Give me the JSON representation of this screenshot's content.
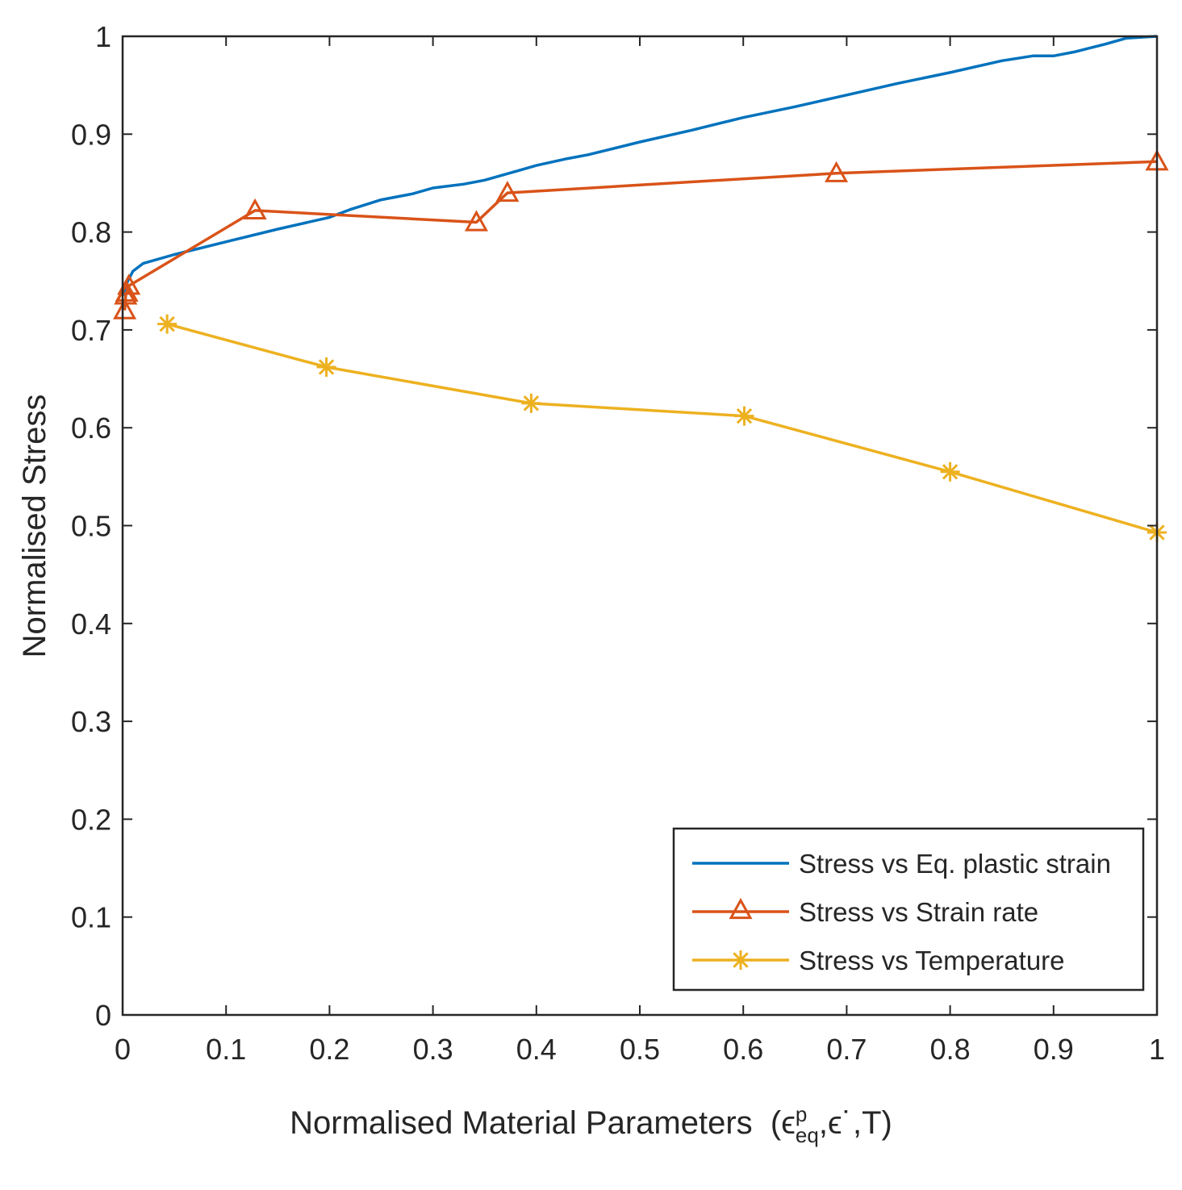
{
  "chart_data": {
    "type": "line",
    "title": "",
    "xlabel": "Normalised Material Parameters",
    "xlabel_symbols": {
      "open": "(",
      "eps": "ϵ",
      "eps_sup": "p",
      "eps_sub": "eq",
      "sep1": ", ",
      "eps_dot": "ϵ˙",
      "sep2": ", ",
      "T": "T",
      "close": ")"
    },
    "ylabel": "Normalised Stress",
    "xlim": [
      0,
      1
    ],
    "ylim": [
      0,
      1
    ],
    "xticks": [
      0,
      0.1,
      0.2,
      0.3,
      0.4,
      0.5,
      0.6,
      0.7,
      0.8,
      0.9,
      1
    ],
    "xtick_labels": [
      "0",
      "0.1",
      "0.2",
      "0.3",
      "0.4",
      "0.5",
      "0.6",
      "0.7",
      "0.8",
      "0.9",
      "1"
    ],
    "yticks": [
      0,
      0.1,
      0.2,
      0.3,
      0.4,
      0.5,
      0.6,
      0.7,
      0.8,
      0.9,
      1
    ],
    "ytick_labels": [
      "0",
      "0.1",
      "0.2",
      "0.3",
      "0.4",
      "0.5",
      "0.6",
      "0.7",
      "0.8",
      "0.9",
      "1"
    ],
    "grid": false,
    "legend_position": "bottom-right",
    "series": [
      {
        "name": "Stress vs Eq. plastic strain",
        "color": "#0072BD",
        "marker": "none",
        "x": [
          0,
          0.005,
          0.01,
          0.02,
          0.05,
          0.1,
          0.15,
          0.2,
          0.22,
          0.25,
          0.28,
          0.3,
          0.33,
          0.35,
          0.38,
          0.4,
          0.43,
          0.45,
          0.5,
          0.55,
          0.6,
          0.65,
          0.7,
          0.75,
          0.8,
          0.85,
          0.88,
          0.9,
          0.92,
          0.95,
          0.97,
          1.0
        ],
        "y": [
          0.735,
          0.75,
          0.76,
          0.768,
          0.777,
          0.79,
          0.803,
          0.815,
          0.823,
          0.833,
          0.839,
          0.845,
          0.849,
          0.853,
          0.862,
          0.868,
          0.875,
          0.879,
          0.892,
          0.904,
          0.917,
          0.928,
          0.94,
          0.952,
          0.963,
          0.975,
          0.98,
          0.98,
          0.984,
          0.992,
          0.998,
          1.0
        ]
      },
      {
        "name": "Stress vs Strain rate",
        "color": "#D95319",
        "marker": "triangle",
        "x": [
          0.002,
          0.003,
          0.004,
          0.006,
          0.128,
          0.342,
          0.372,
          0.69,
          1.0
        ],
        "y": [
          0.72,
          0.735,
          0.738,
          0.745,
          0.822,
          0.81,
          0.84,
          0.86,
          0.872
        ]
      },
      {
        "name": "Stress vs Temperature",
        "color": "#EDB120",
        "marker": "asterisk",
        "x": [
          0.043,
          0.197,
          0.395,
          0.601,
          0.8,
          1.0
        ],
        "y": [
          0.706,
          0.662,
          0.625,
          0.612,
          0.555,
          0.493
        ]
      }
    ]
  }
}
